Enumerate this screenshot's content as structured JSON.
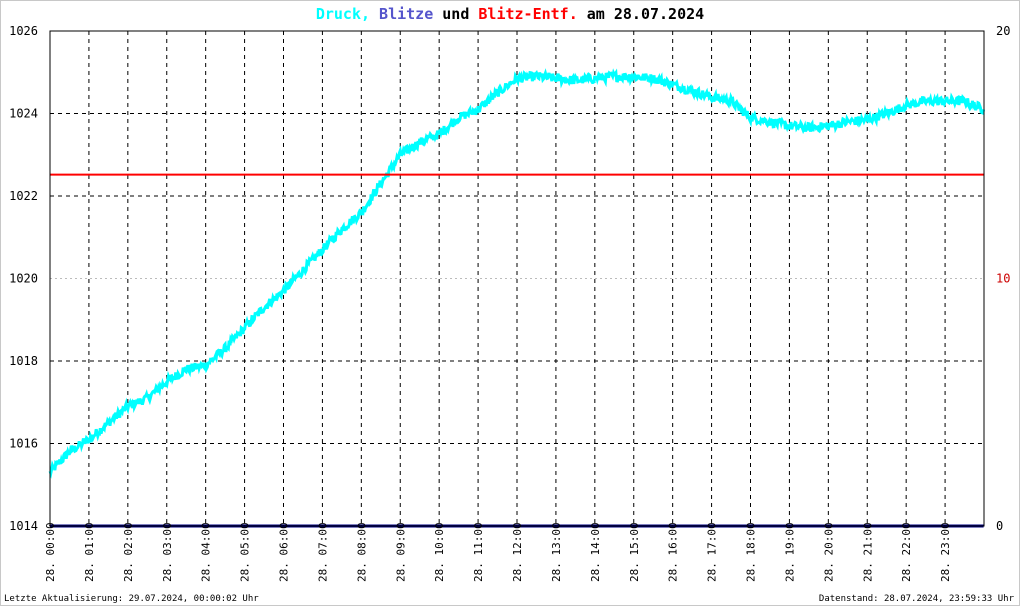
{
  "title": {
    "part1": "Druck,",
    "part2": "Blitze",
    "part3": "und",
    "part4": "Blitz-Entf.",
    "part5": "am 28.07.2024"
  },
  "colors": {
    "pressure": "#00ffff",
    "lightning": "#000080",
    "distance": "#ff0000",
    "title_blitze": "#5555cc",
    "grid": "#000000"
  },
  "footer": {
    "left": "Letzte Aktualisierung: 29.07.2024, 00:00:02 Uhr",
    "right": "Datenstand: 28.07.2024, 23:59:33 Uhr"
  },
  "chart_data": {
    "type": "line",
    "y_left": {
      "min": 1014,
      "max": 1026,
      "ticks": [
        "1014",
        "1016",
        "1018",
        "1020",
        "1022",
        "1024",
        "1026"
      ]
    },
    "y_right": {
      "min": 0,
      "max": 20,
      "ticks": [
        "0",
        "10",
        "20"
      ]
    },
    "x_ticks": [
      "28. 00:00",
      "28. 01:00",
      "28. 02:00",
      "28. 03:00",
      "28. 04:00",
      "28. 05:00",
      "28. 06:00",
      "28. 07:00",
      "28. 08:00",
      "28. 09:00",
      "28. 10:00",
      "28. 11:00",
      "28. 12:00",
      "28. 13:00",
      "28. 14:00",
      "28. 15:00",
      "28. 16:00",
      "28. 17:00",
      "28. 18:00",
      "28. 19:00",
      "28. 20:00",
      "28. 21:00",
      "28. 22:00",
      "28. 23:00"
    ],
    "series": [
      {
        "key": "druck",
        "axis": "left",
        "x": [
          0,
          0.5,
          1,
          1.5,
          2,
          2.5,
          3,
          3.5,
          4,
          4.5,
          5,
          5.5,
          6,
          6.5,
          7,
          7.5,
          8,
          8.5,
          9,
          9.5,
          10,
          10.5,
          11,
          11.5,
          12,
          12.5,
          13,
          13.5,
          14,
          14.5,
          15,
          15.5,
          16,
          16.5,
          17,
          17.5,
          18,
          18.5,
          19,
          19.5,
          20,
          20.5,
          21,
          21.5,
          22,
          22.5,
          23,
          23.5,
          23.99
        ],
        "values": [
          1015.3,
          1015.8,
          1016.1,
          1016.5,
          1016.9,
          1017.1,
          1017.5,
          1017.8,
          1017.9,
          1018.3,
          1018.8,
          1019.3,
          1019.7,
          1020.2,
          1020.7,
          1021.2,
          1021.6,
          1022.3,
          1023.0,
          1023.3,
          1023.5,
          1023.9,
          1024.1,
          1024.5,
          1024.85,
          1024.9,
          1024.85,
          1024.8,
          1024.85,
          1024.9,
          1024.9,
          1024.85,
          1024.7,
          1024.55,
          1024.4,
          1024.3,
          1023.9,
          1023.8,
          1023.7,
          1023.65,
          1023.7,
          1023.8,
          1023.85,
          1024.0,
          1024.2,
          1024.3,
          1024.3,
          1024.3,
          1024.1
        ]
      },
      {
        "key": "blitz_entf",
        "axis": "right",
        "x": [
          0,
          23.99
        ],
        "values": [
          14.2,
          14.2
        ]
      },
      {
        "key": "blitze",
        "axis": "right",
        "x": [
          0,
          23.99
        ],
        "values": [
          0,
          0
        ]
      }
    ],
    "grid": true
  }
}
